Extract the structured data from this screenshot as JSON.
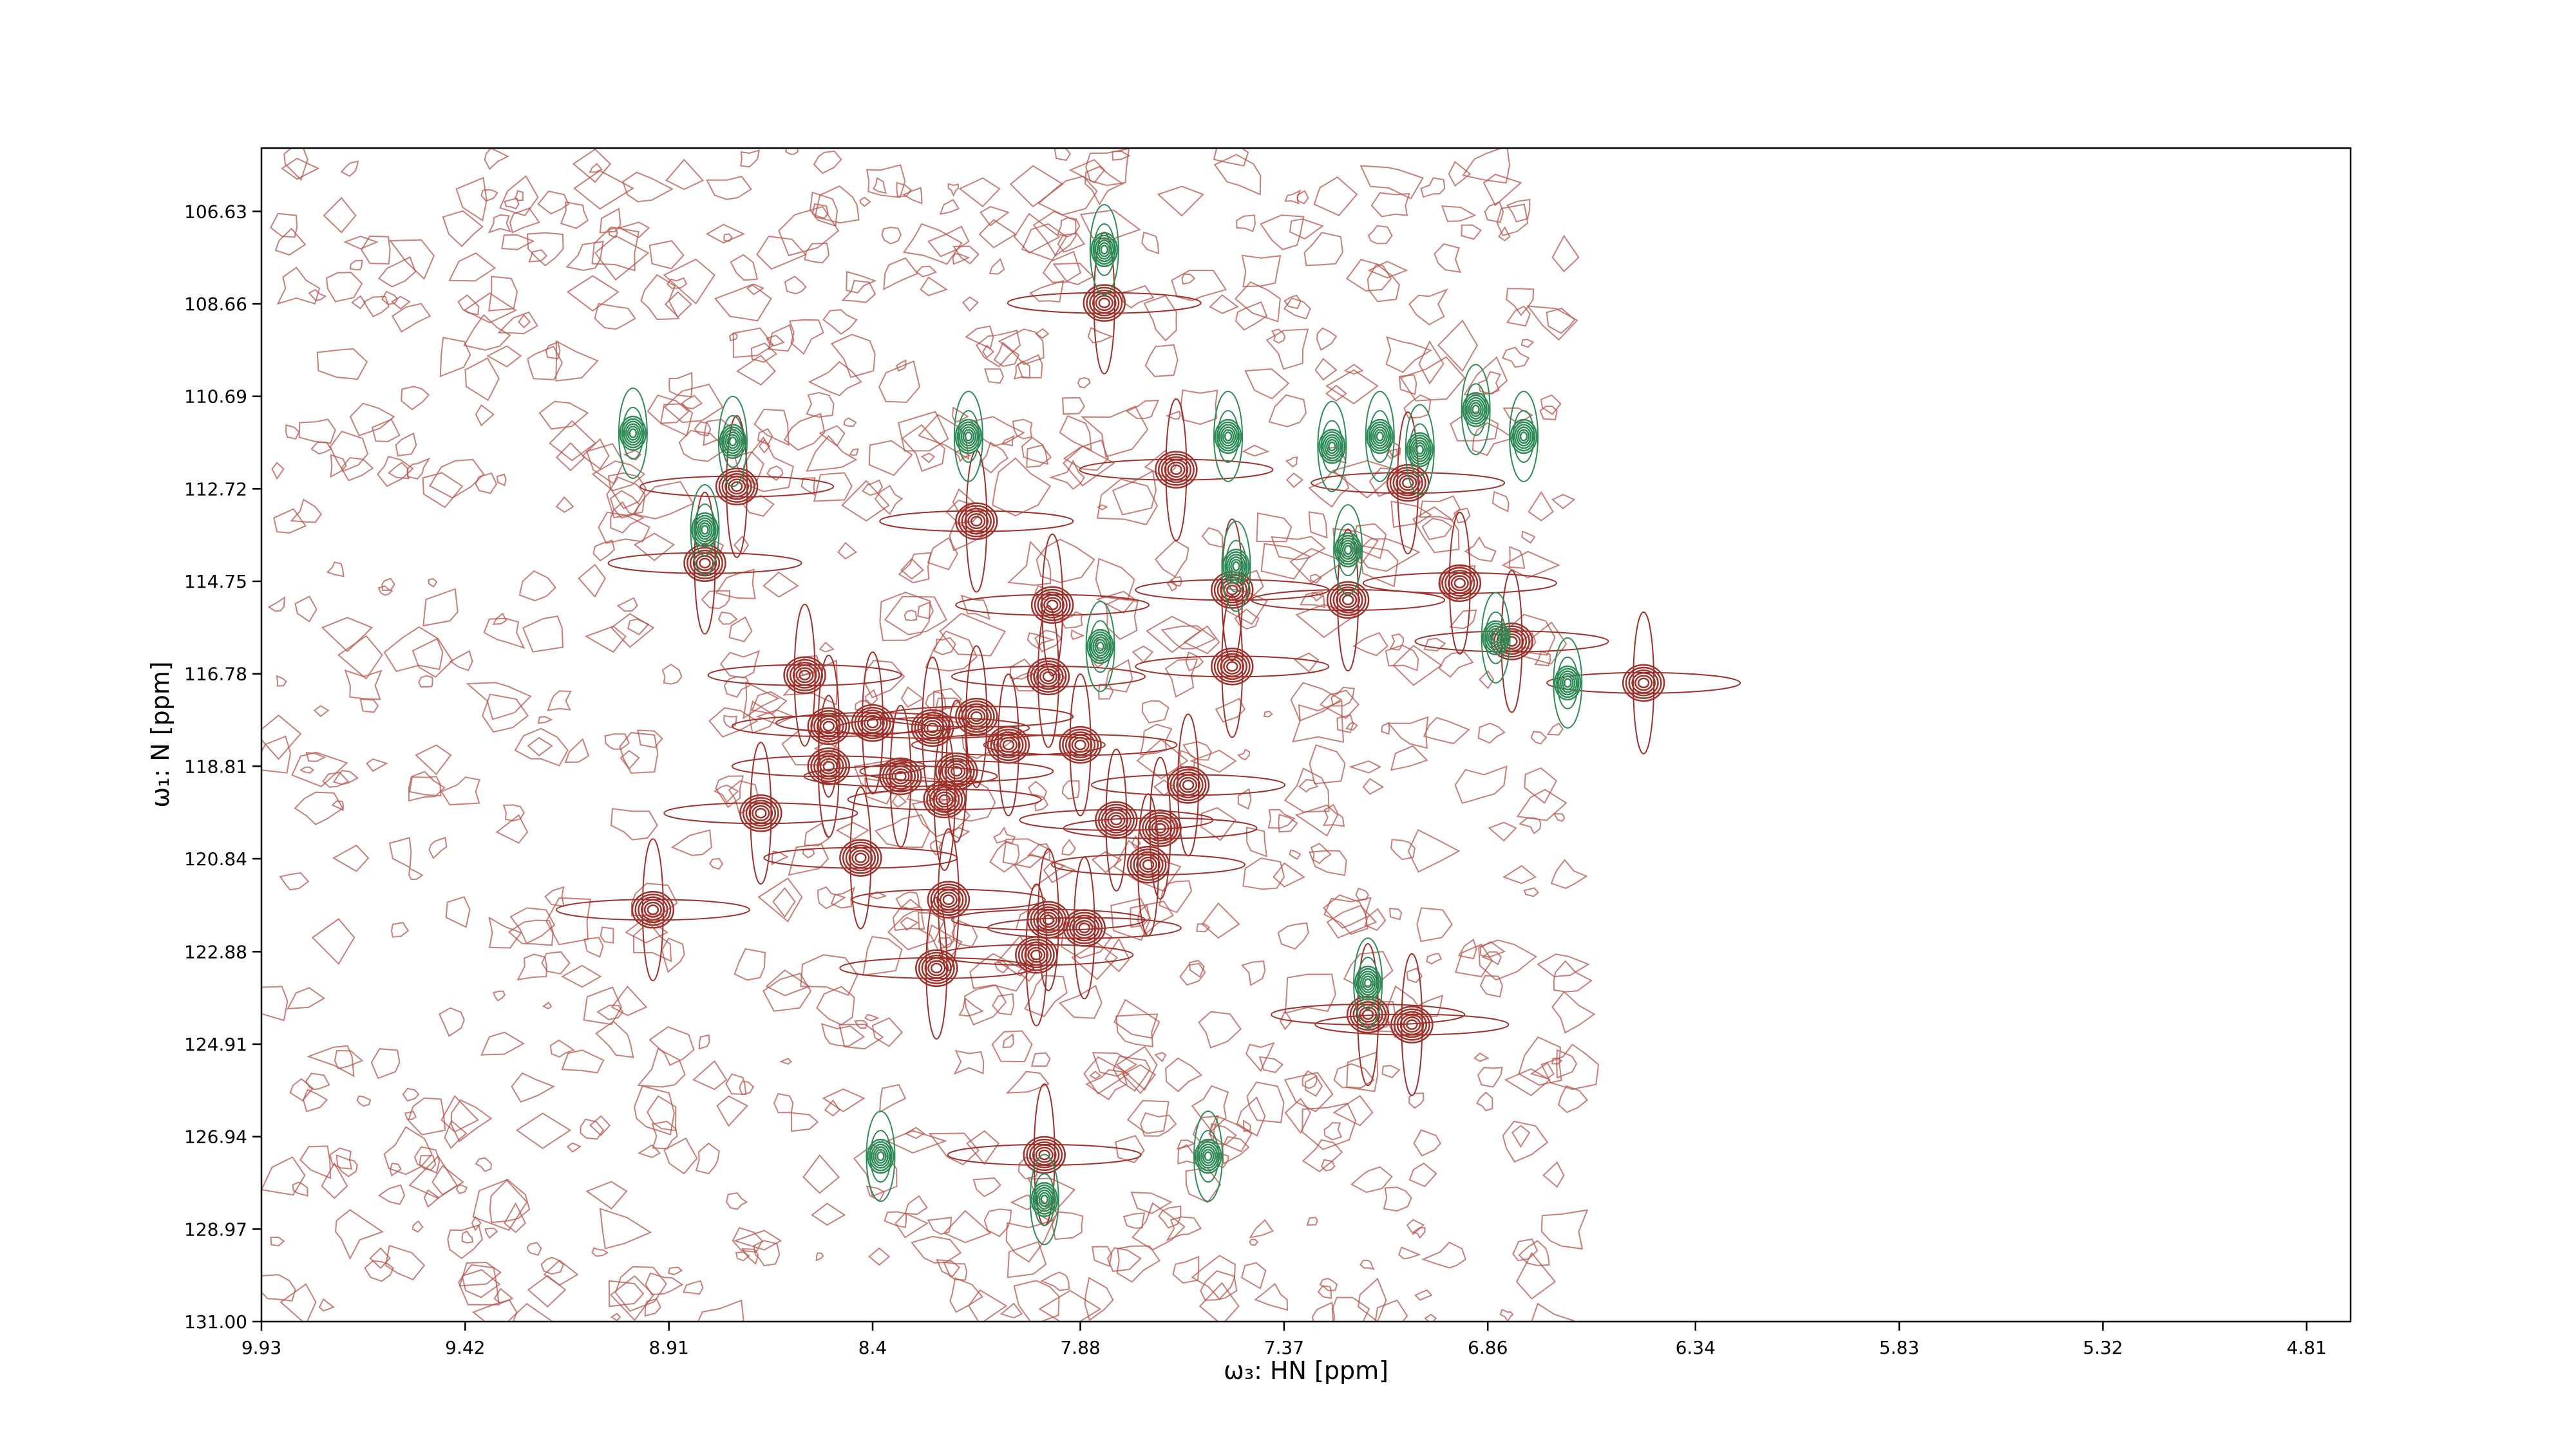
{
  "chart_data": {
    "type": "contour",
    "xlabel": "ω₃: HN [ppm]",
    "ylabel": "ω₁: N [ppm]",
    "xlim": [
      9.93,
      4.7
    ],
    "ylim": [
      131.0,
      105.24
    ],
    "xticks": [
      9.93,
      9.42,
      8.91,
      8.4,
      7.88,
      7.37,
      6.86,
      6.34,
      5.83,
      5.32,
      4.81
    ],
    "yticks": [
      106.63,
      108.66,
      110.69,
      112.72,
      114.75,
      116.78,
      118.81,
      120.84,
      122.88,
      124.91,
      126.94,
      128.97,
      {
        "value": 131,
        "label": "131.00"
      }
    ],
    "series": [
      {
        "color": "#a0302a",
        "x": [
          7.82,
          8.74,
          8.82,
          7.06,
          8.14,
          7.95,
          7.5,
          7.21,
          7.5,
          6.93,
          7.64,
          8.57,
          7.96,
          6.47,
          6.8,
          8.51,
          8.4,
          8.51,
          8.25,
          8.14,
          8.06,
          7.88,
          8.33,
          8.19,
          8.22,
          8.68,
          7.79,
          7.68,
          7.61,
          7.71,
          8.43,
          8.21,
          8.95,
          7.96,
          7.87,
          7.99,
          8.24,
          7.16,
          7.05,
          7.97
        ],
        "y": [
          108.64,
          112.67,
          114.35,
          112.59,
          113.43,
          115.27,
          114.94,
          115.16,
          116.62,
          114.79,
          112.3,
          116.81,
          116.84,
          116.98,
          116.07,
          117.93,
          117.86,
          118.81,
          117.97,
          117.72,
          118.34,
          118.34,
          119.03,
          118.92,
          119.54,
          119.84,
          119.99,
          120.17,
          119.22,
          120.97,
          120.82,
          121.74,
          121.96,
          122.18,
          122.36,
          122.95,
          123.24,
          124.26,
          124.48,
          127.34
        ]
      },
      {
        "color": "#2e8b57",
        "x": [
          7.82,
          9.0,
          8.75,
          8.16,
          7.51,
          7.25,
          7.13,
          7.03,
          6.89,
          6.77,
          8.82,
          7.21,
          7.49,
          7.83,
          6.84,
          6.66,
          7.97,
          7.16,
          8.38,
          7.56
        ],
        "y": [
          107.47,
          111.5,
          111.68,
          111.57,
          111.57,
          111.79,
          111.57,
          111.86,
          110.98,
          111.57,
          113.62,
          114.06,
          114.42,
          116.18,
          115.99,
          116.98,
          128.32,
          123.57,
          127.37,
          127.37
        ]
      }
    ]
  }
}
